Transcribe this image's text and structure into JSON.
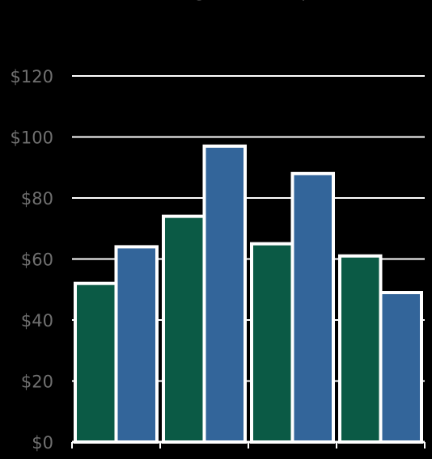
{
  "chart_data": {
    "type": "bar",
    "title": "",
    "xlabel": "",
    "ylabel": "",
    "categories": [
      "",
      "",
      "",
      ""
    ],
    "series": [
      {
        "values": [
          52,
          74,
          65,
          61
        ]
      },
      {
        "values": [
          64,
          97,
          88,
          49
        ]
      }
    ],
    "ylim": [
      0,
      120
    ],
    "yticks": [
      "$0",
      "$20",
      "$40",
      "$60",
      "$80",
      "$100",
      "$120"
    ],
    "grid": true,
    "colors": {
      "background": "#000000",
      "series": [
        "#0b5a45",
        "#33659a"
      ],
      "bar_outline": "#ffffff",
      "grid": "#ffffff",
      "tick_text": "#707070"
    }
  }
}
